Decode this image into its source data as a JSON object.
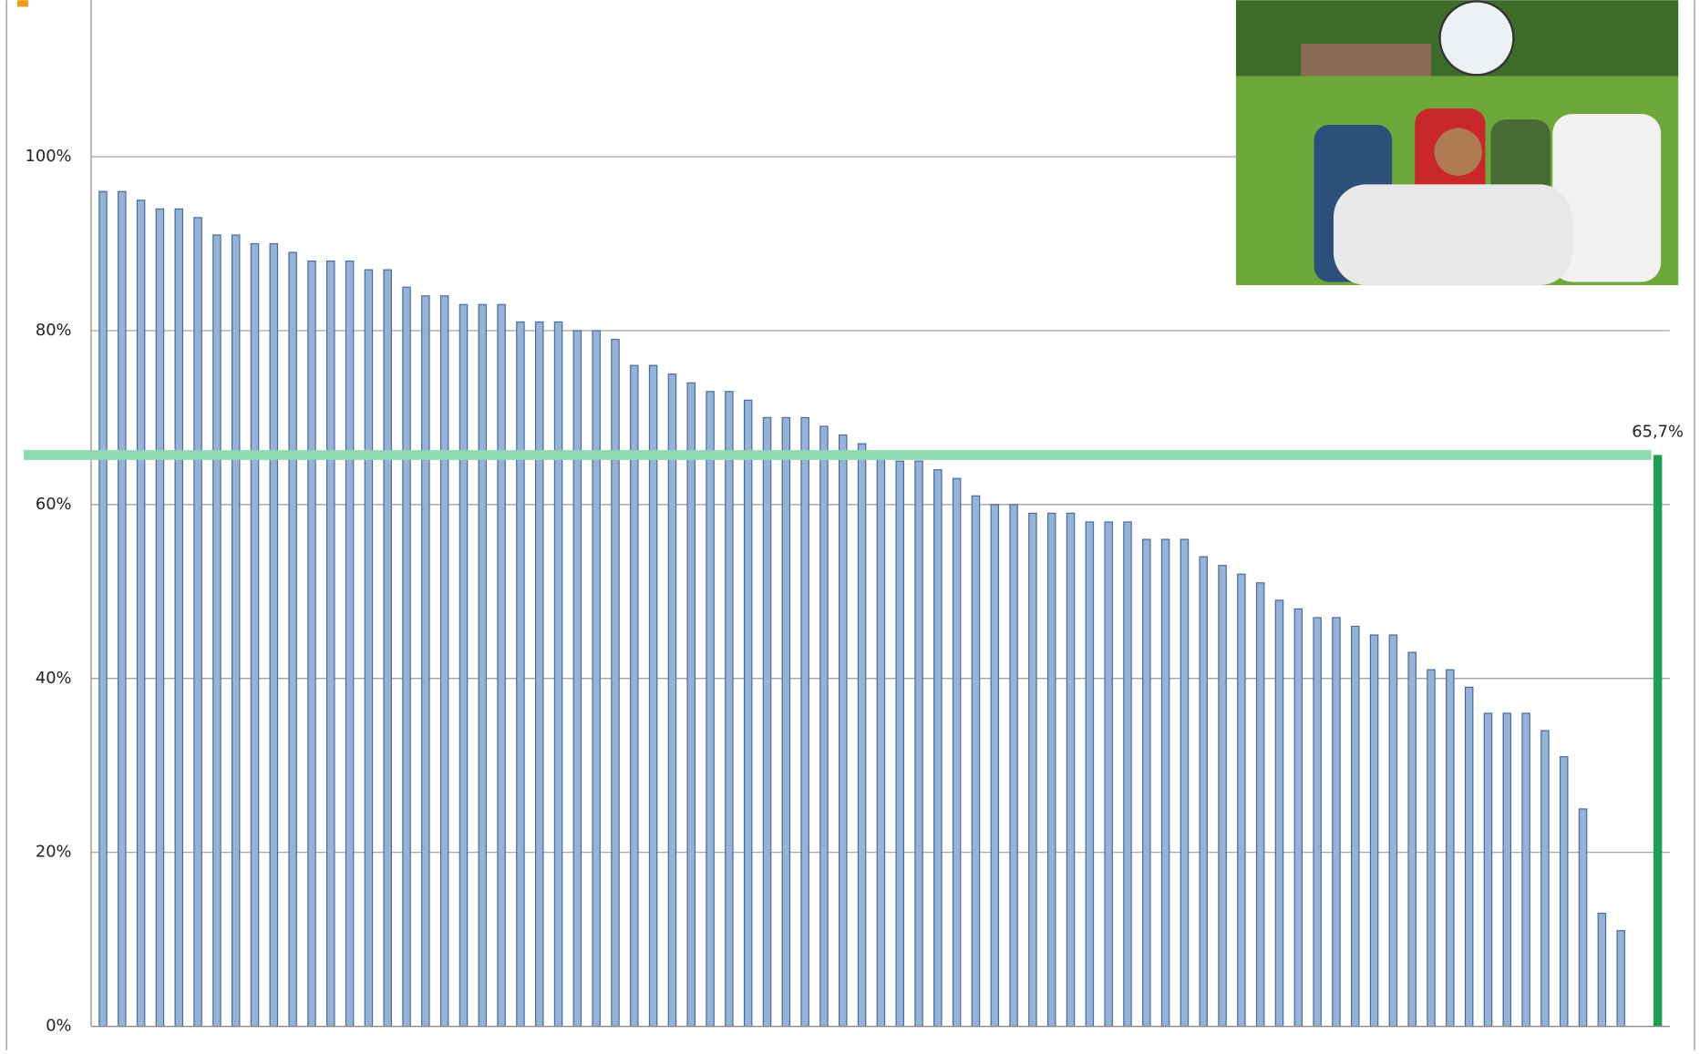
{
  "chart_data": {
    "type": "bar",
    "values": [
      96,
      96,
      95,
      94,
      94,
      93,
      91,
      91,
      90,
      90,
      89,
      88,
      88,
      88,
      87,
      87,
      85,
      84,
      84,
      83,
      83,
      83,
      81,
      81,
      81,
      80,
      80,
      79,
      76,
      76,
      75,
      74,
      73,
      73,
      72,
      70,
      70,
      70,
      69,
      68,
      67,
      66,
      65,
      65,
      64,
      63,
      61,
      60,
      60,
      59,
      59,
      59,
      58,
      58,
      58,
      56,
      56,
      56,
      54,
      53,
      52,
      51,
      49,
      48,
      47,
      47,
      46,
      45,
      45,
      43,
      41,
      41,
      39,
      36,
      36,
      36,
      34,
      31,
      25,
      13,
      11
    ],
    "color": "#95b3d7",
    "highlight": {
      "value": 65.7,
      "value_label": "65,7%",
      "color": "#1f9e55",
      "line_color": "#8fd9b0"
    },
    "ylim": [
      0,
      118
    ],
    "yticks": [
      {
        "value": 0,
        "label": "0%"
      },
      {
        "value": 20,
        "label": "20%"
      },
      {
        "value": 40,
        "label": "40%"
      },
      {
        "value": 60,
        "label": "60%"
      },
      {
        "value": 80,
        "label": "80%"
      },
      {
        "value": 100,
        "label": "100%"
      }
    ],
    "grid": true
  }
}
